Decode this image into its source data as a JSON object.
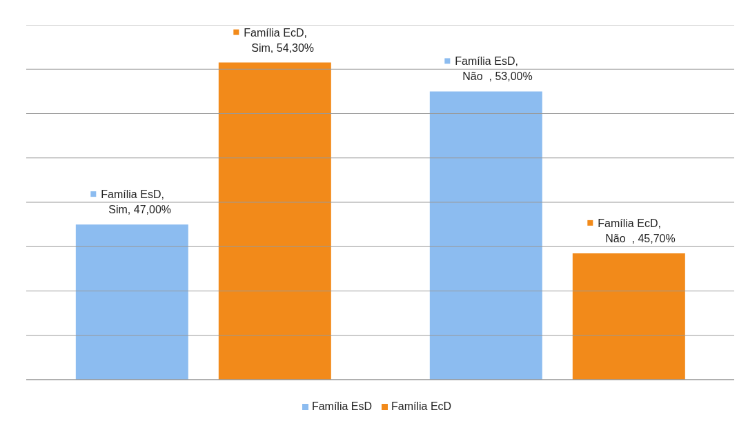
{
  "chart_data": {
    "type": "bar",
    "categories": [
      null,
      null
    ],
    "series": [
      {
        "name": "Família EsD",
        "color": "#8cbcf0",
        "values": [
          47.0,
          53.0
        ],
        "value_labels": [
          "Família EsD, Sim, 47,00%",
          "Família EsD, Não  , 53,00%"
        ]
      },
      {
        "name": "Família EcD",
        "color": "#f28a1a",
        "values": [
          54.3,
          45.7
        ],
        "value_labels": [
          "Família EcD, Sim, 54,30%",
          "Família EcD, Não  , 45,70%"
        ]
      }
    ],
    "ylim": [
      40,
      56
    ],
    "yticks": [
      {
        "value": 40,
        "label": null
      },
      {
        "value": 42,
        "label": null
      },
      {
        "value": 44,
        "label": null
      },
      {
        "value": 46,
        "label": null
      },
      {
        "value": 48,
        "label": null
      },
      {
        "value": 50,
        "label": null
      },
      {
        "value": 52,
        "label": null
      },
      {
        "value": 54,
        "label": null
      },
      {
        "value": 56,
        "label": null
      }
    ],
    "grid": "y",
    "legend": "bottom"
  }
}
